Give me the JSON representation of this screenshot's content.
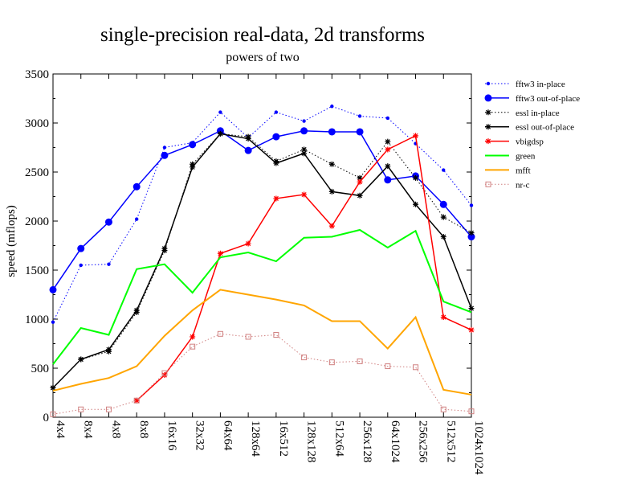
{
  "chart_data": {
    "type": "line",
    "title": "single-precision real-data, 2d transforms",
    "subtitle": "powers of two",
    "xlabel": "",
    "ylabel": "speed (mflops)",
    "ylim": [
      0,
      3500
    ],
    "yticks": [
      0,
      500,
      1000,
      1500,
      2000,
      2500,
      3000,
      3500
    ],
    "grid": false,
    "legend_position": "right",
    "categories": [
      "4x4",
      "8x4",
      "4x8",
      "8x8",
      "16x16",
      "32x32",
      "64x64",
      "128x64",
      "16x512",
      "128x128",
      "512x64",
      "256x128",
      "64x1024",
      "256x256",
      "512x512",
      "1024x1024"
    ],
    "series": [
      {
        "name": "fftw3 in-place",
        "color": "#0000ff",
        "dash": "dotted",
        "marker": "dot-small",
        "values": [
          970,
          1550,
          1560,
          2020,
          2750,
          2800,
          3110,
          2850,
          3110,
          3020,
          3170,
          3070,
          3050,
          2790,
          2520,
          2160
        ]
      },
      {
        "name": "fftw3 out-of-place",
        "color": "#0000ff",
        "dash": "solid",
        "marker": "dot-large",
        "values": [
          1300,
          1720,
          1990,
          2350,
          2670,
          2780,
          2920,
          2720,
          2860,
          2920,
          2910,
          2910,
          2420,
          2460,
          2170,
          1840
        ]
      },
      {
        "name": "essl in-place",
        "color": "#000000",
        "dash": "dotted",
        "marker": "star",
        "values": [
          300,
          590,
          670,
          1070,
          1700,
          2580,
          2890,
          2860,
          2610,
          2730,
          2580,
          2440,
          2810,
          2440,
          2040,
          1880
        ]
      },
      {
        "name": "essl out-of-place",
        "color": "#000000",
        "dash": "solid",
        "marker": "star",
        "values": [
          300,
          590,
          690,
          1090,
          1720,
          2550,
          2890,
          2840,
          2590,
          2690,
          2300,
          2260,
          2560,
          2170,
          1840,
          1110
        ]
      },
      {
        "name": "vbigdsp",
        "color": "#ff0000",
        "dash": "solid",
        "marker": "star",
        "values": [
          null,
          null,
          null,
          170,
          430,
          820,
          1670,
          1770,
          2230,
          2270,
          1950,
          2400,
          2730,
          2870,
          1020,
          890
        ]
      },
      {
        "name": "green",
        "color": "#00ff00",
        "dash": "solid",
        "marker": "none",
        "values": [
          540,
          910,
          840,
          1510,
          1560,
          1270,
          1630,
          1680,
          1590,
          1830,
          1840,
          1910,
          1730,
          1900,
          1180,
          1070
        ]
      },
      {
        "name": "mfft",
        "color": "#ffa500",
        "dash": "solid",
        "marker": "none",
        "values": [
          270,
          340,
          400,
          520,
          830,
          1090,
          1300,
          1250,
          1200,
          1140,
          980,
          980,
          700,
          1020,
          280,
          230
        ]
      },
      {
        "name": "nr-c",
        "color": "#d08080",
        "dash": "dotted",
        "marker": "square",
        "values": [
          30,
          80,
          80,
          170,
          450,
          720,
          850,
          820,
          840,
          610,
          560,
          570,
          520,
          510,
          80,
          60
        ]
      }
    ]
  }
}
